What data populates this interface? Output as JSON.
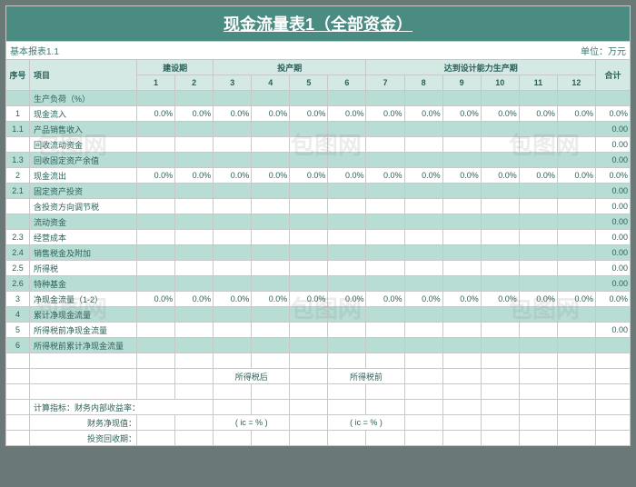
{
  "title": "现金流量表1（全部资金）",
  "meta_left": "基本报表1.1",
  "meta_right": "单位：万元",
  "headers": {
    "seq": "序号",
    "item": "项目",
    "period1": "建设期",
    "period2": "投产期",
    "period3": "达到设计能力生产期",
    "total": "合计",
    "cols": [
      "1",
      "2",
      "3",
      "4",
      "5",
      "6",
      "7",
      "8",
      "9",
      "10",
      "11",
      "12"
    ]
  },
  "rows": [
    {
      "seq": "",
      "item": "生产负荷（%）",
      "hl": true,
      "vals": [
        "",
        "",
        "",
        "",
        "",
        "",
        "",
        "",
        "",
        "",
        "",
        ""
      ],
      "total": ""
    },
    {
      "seq": "1",
      "item": "现金流入",
      "hl": false,
      "vals": [
        "0.0%",
        "0.0%",
        "0.0%",
        "0.0%",
        "0.0%",
        "0.0%",
        "0.0%",
        "0.0%",
        "0.0%",
        "0.0%",
        "0.0%",
        "0.0%"
      ],
      "total": "0.0%"
    },
    {
      "seq": "1.1",
      "item": "产品销售收入",
      "hl": true,
      "vals": [
        "",
        "",
        "",
        "",
        "",
        "",
        "",
        "",
        "",
        "",
        "",
        ""
      ],
      "total": "0.00"
    },
    {
      "seq": "",
      "item": "回收流动资金",
      "hl": false,
      "vals": [
        "",
        "",
        "",
        "",
        "",
        "",
        "",
        "",
        "",
        "",
        "",
        ""
      ],
      "total": "0.00"
    },
    {
      "seq": "1.3",
      "item": "回收固定资产余值",
      "hl": true,
      "vals": [
        "",
        "",
        "",
        "",
        "",
        "",
        "",
        "",
        "",
        "",
        "",
        ""
      ],
      "total": "0.00"
    },
    {
      "seq": "2",
      "item": "现金流出",
      "hl": false,
      "vals": [
        "0.0%",
        "0.0%",
        "0.0%",
        "0.0%",
        "0.0%",
        "0.0%",
        "0.0%",
        "0.0%",
        "0.0%",
        "0.0%",
        "0.0%",
        "0.0%"
      ],
      "total": "0.0%"
    },
    {
      "seq": "2.1",
      "item": "固定资产投资",
      "hl": true,
      "vals": [
        "",
        "",
        "",
        "",
        "",
        "",
        "",
        "",
        "",
        "",
        "",
        ""
      ],
      "total": "0.00"
    },
    {
      "seq": "",
      "item": "含投资方向调节税",
      "hl": false,
      "vals": [
        "",
        "",
        "",
        "",
        "",
        "",
        "",
        "",
        "",
        "",
        "",
        ""
      ],
      "total": "0.00"
    },
    {
      "seq": "",
      "item": "流动资金",
      "hl": true,
      "vals": [
        "",
        "",
        "",
        "",
        "",
        "",
        "",
        "",
        "",
        "",
        "",
        ""
      ],
      "total": "0.00"
    },
    {
      "seq": "2.3",
      "item": "经营成本",
      "hl": false,
      "vals": [
        "",
        "",
        "",
        "",
        "",
        "",
        "",
        "",
        "",
        "",
        "",
        ""
      ],
      "total": "0.00"
    },
    {
      "seq": "2.4",
      "item": "销售税金及附加",
      "hl": true,
      "vals": [
        "",
        "",
        "",
        "",
        "",
        "",
        "",
        "",
        "",
        "",
        "",
        ""
      ],
      "total": "0.00"
    },
    {
      "seq": "2.5",
      "item": "所得税",
      "hl": false,
      "vals": [
        "",
        "",
        "",
        "",
        "",
        "",
        "",
        "",
        "",
        "",
        "",
        ""
      ],
      "total": "0.00"
    },
    {
      "seq": "2.6",
      "item": "特种基金",
      "hl": true,
      "vals": [
        "",
        "",
        "",
        "",
        "",
        "",
        "",
        "",
        "",
        "",
        "",
        ""
      ],
      "total": "0.00"
    },
    {
      "seq": "3",
      "item": "净现金流量（1-2）",
      "hl": false,
      "vals": [
        "0.0%",
        "0.0%",
        "0.0%",
        "0.0%",
        "0.0%",
        "0.0%",
        "0.0%",
        "0.0%",
        "0.0%",
        "0.0%",
        "0.0%",
        "0.0%"
      ],
      "total": "0.0%"
    },
    {
      "seq": "4",
      "item": "累计净现金流量",
      "hl": true,
      "vals": [
        "",
        "",
        "",
        "",
        "",
        "",
        "",
        "",
        "",
        "",
        "",
        ""
      ],
      "total": ""
    },
    {
      "seq": "5",
      "item": "所得税前净现金流量",
      "hl": false,
      "vals": [
        "",
        "",
        "",
        "",
        "",
        "",
        "",
        "",
        "",
        "",
        "",
        ""
      ],
      "total": "0.00"
    },
    {
      "seq": "6",
      "item": "所得税前累计净现金流量",
      "hl": true,
      "vals": [
        "",
        "",
        "",
        "",
        "",
        "",
        "",
        "",
        "",
        "",
        "",
        ""
      ],
      "total": ""
    }
  ],
  "footer": {
    "after_tax": "所得税后",
    "before_tax": "所得税前",
    "calc_label": "计算指标：财务内部收益率：",
    "npv_label": "财务净现值：",
    "payback_label": "投资回收期：",
    "ic1": "( ic =   % )",
    "ic2": "( ic =   % )"
  },
  "colors": {
    "title_bg": "#4a8b82",
    "header_bg": "#d4e8e4",
    "hl_bg": "#b8ddd5",
    "border": "#c8c8c8",
    "text": "#2a6058"
  }
}
